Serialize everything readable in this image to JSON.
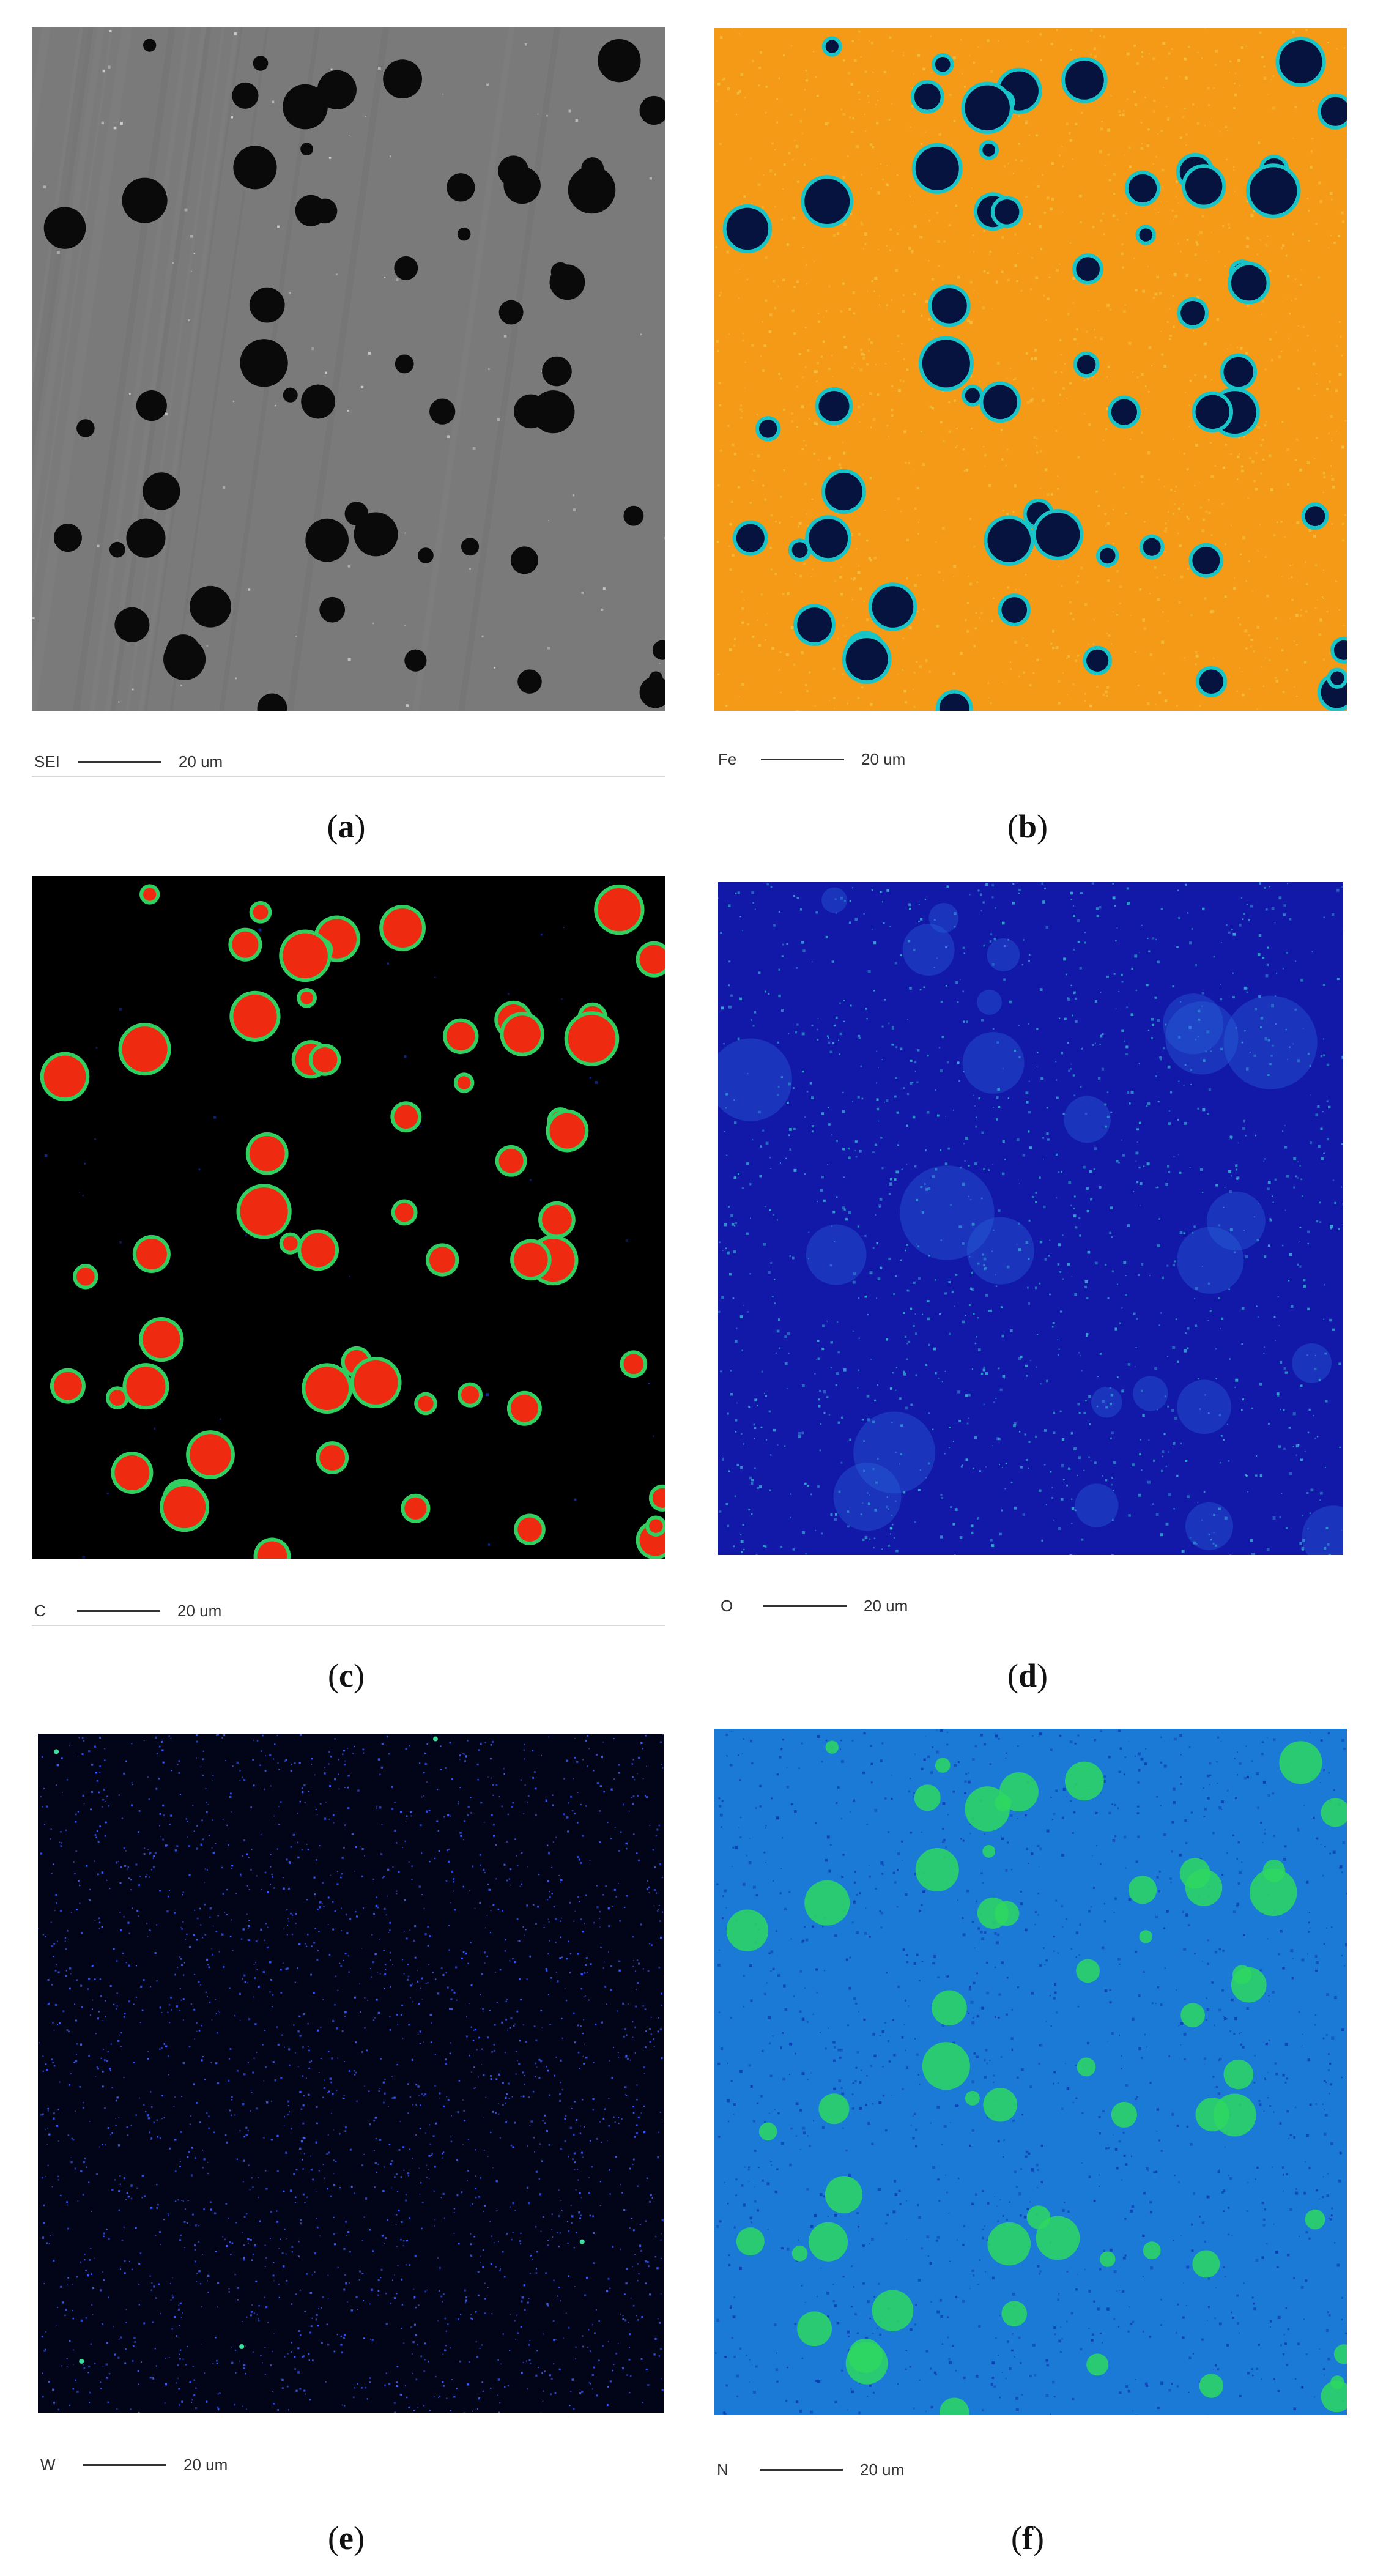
{
  "panels": [
    {
      "id": "a",
      "element_label": "SEI",
      "scale_label": "20 um",
      "caption_letter": "a",
      "palette": {
        "background": "#7a7a7a",
        "particle": "#0a0a0a",
        "speck": "#e8e8e8"
      }
    },
    {
      "id": "b",
      "element_label": "Fe",
      "scale_label": "20 um",
      "caption_letter": "b",
      "palette": {
        "background": "#f59a16",
        "particle": "#06133f",
        "rim": "#18c4c8",
        "speck": "#f2c84a"
      }
    },
    {
      "id": "c",
      "element_label": "C",
      "scale_label": "20 um",
      "caption_letter": "c",
      "palette": {
        "background": "#000000",
        "particle": "#ee2a10",
        "rim": "#2fd060",
        "speck": "#1a3cd8"
      }
    },
    {
      "id": "d",
      "element_label": "O",
      "scale_label": "20 um",
      "caption_letter": "d",
      "palette": {
        "background": "#1218a8",
        "particle": "#2a6ae0",
        "speck": "#40d0e0"
      }
    },
    {
      "id": "e",
      "element_label": "W",
      "scale_label": "20 um",
      "caption_letter": "e",
      "palette": {
        "background": "#020418",
        "particle": "#2a40ff",
        "speck": "#3a5cff"
      }
    },
    {
      "id": "f",
      "element_label": "N",
      "scale_label": "20 um",
      "caption_letter": "f",
      "palette": {
        "background": "#1a7ad6",
        "particle": "#2ed860",
        "speck": "#0a2aa8"
      }
    }
  ]
}
